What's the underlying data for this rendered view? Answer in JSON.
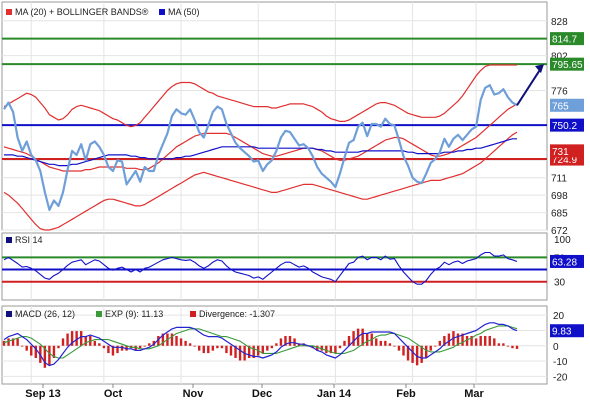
{
  "colors": {
    "price": "#6f9fd8",
    "ma20_band": "#e03030",
    "ma50": "#1010c8",
    "green": "#2a8a2a",
    "red": "#d02020",
    "blue": "#1010c8",
    "axis_text": "#222222",
    "grid": "#e4e4e4",
    "macd_blue": "#2424d0",
    "macd_green": "#3a9a3a",
    "hist": "#d02020",
    "arrow": "#10107a"
  },
  "chart_data": [
    {
      "type": "line",
      "name": "price-panel",
      "legend": [
        "MA (20) + BOLLINGER BANDS®",
        "MA (50)"
      ],
      "y_ticks": [
        828,
        802,
        776,
        750,
        724,
        711,
        698,
        685,
        672
      ],
      "ylim": [
        672,
        842
      ],
      "x_labels": [
        "Sep 13",
        "Oct",
        "Nov",
        "Dec",
        "Jan 14",
        "Feb",
        "Mar"
      ],
      "hlines": [
        {
          "value": 814.7,
          "label": "814.7",
          "color": "green"
        },
        {
          "value": 795.65,
          "label": "795.65",
          "color": "green"
        },
        {
          "value": 750.2,
          "label": "750.2",
          "color": "blue"
        },
        {
          "value": 724.9,
          "label": "724.9",
          "color": "red"
        }
      ],
      "value_tags": [
        {
          "value": 765,
          "label": "765",
          "color": "price"
        },
        {
          "value": 731,
          "label": "731",
          "color": "red"
        }
      ],
      "arrow": {
        "from": 765,
        "to": 795.65
      },
      "price": [
        762,
        767,
        760,
        741,
        731,
        738,
        728,
        724,
        716,
        700,
        687,
        694,
        690,
        700,
        717,
        731,
        728,
        736,
        724,
        736,
        738,
        734,
        728,
        719,
        716,
        724,
        723,
        706,
        711,
        716,
        708,
        719,
        716,
        716,
        728,
        736,
        744,
        757,
        762,
        759,
        758,
        762,
        754,
        745,
        741,
        750,
        760,
        764,
        762,
        751,
        744,
        737,
        733,
        730,
        727,
        723,
        724,
        716,
        721,
        724,
        731,
        741,
        746,
        745,
        740,
        735,
        736,
        733,
        727,
        719,
        714,
        711,
        708,
        704,
        714,
        726,
        737,
        739,
        749,
        752,
        742,
        751,
        751,
        749,
        755,
        751,
        750,
        739,
        727,
        720,
        711,
        708,
        707,
        714,
        722,
        725,
        730,
        740,
        734,
        740,
        743,
        739,
        743,
        747,
        749,
        769,
        778,
        780,
        773,
        774,
        777,
        771,
        767,
        765
      ],
      "ma20": [
        734,
        733,
        732,
        731,
        730,
        729,
        727,
        725,
        723,
        721,
        719,
        718,
        717,
        716,
        716,
        716,
        716,
        716,
        717,
        717,
        718,
        719,
        719,
        719,
        719,
        719,
        719,
        718,
        718,
        718,
        717,
        717,
        718,
        720,
        722,
        725,
        728,
        731,
        734,
        736,
        738,
        740,
        742,
        743,
        744,
        744,
        744,
        744,
        744,
        744,
        743,
        741,
        739,
        737,
        735,
        733,
        731,
        729,
        728,
        727,
        727,
        728,
        729,
        730,
        731,
        732,
        733,
        733,
        733,
        732,
        731,
        729,
        727,
        725,
        724,
        724,
        725,
        726,
        727,
        729,
        731,
        733,
        735,
        737,
        739,
        740,
        741,
        741,
        740,
        738,
        736,
        734,
        732,
        730,
        728,
        727,
        727,
        728,
        729,
        731,
        733,
        735,
        737,
        739,
        741,
        744,
        747,
        750,
        753,
        756,
        759,
        762,
        764,
        766
      ],
      "bb_upper": [
        764,
        766,
        768,
        770,
        772,
        774,
        773,
        771,
        767,
        763,
        758,
        756,
        754,
        755,
        758,
        762,
        764,
        765,
        764,
        763,
        762,
        761,
        759,
        757,
        755,
        754,
        752,
        750,
        749,
        750,
        752,
        756,
        760,
        764,
        768,
        772,
        776,
        779,
        781,
        782,
        782,
        782,
        781,
        779,
        777,
        775,
        774,
        772,
        771,
        770,
        769,
        768,
        767,
        766,
        765,
        764,
        764,
        764,
        764,
        763,
        763,
        764,
        765,
        766,
        766,
        766,
        766,
        765,
        764,
        762,
        760,
        757,
        755,
        754,
        753,
        753,
        754,
        756,
        758,
        760,
        762,
        764,
        766,
        767,
        767,
        766,
        765,
        763,
        761,
        759,
        758,
        757,
        756,
        756,
        756,
        756,
        757,
        759,
        762,
        765,
        768,
        772,
        777,
        782,
        787,
        791,
        794,
        795,
        795,
        795,
        795,
        795,
        795,
        795
      ],
      "bb_lower": [
        700,
        698,
        695,
        692,
        688,
        684,
        680,
        676,
        673,
        672,
        672,
        673,
        674,
        676,
        678,
        680,
        682,
        684,
        686,
        688,
        690,
        692,
        694,
        695,
        695,
        694,
        693,
        692,
        691,
        690,
        690,
        691,
        693,
        695,
        697,
        699,
        701,
        703,
        705,
        707,
        709,
        711,
        713,
        714,
        715,
        714,
        713,
        712,
        711,
        710,
        709,
        708,
        707,
        706,
        705,
        704,
        703,
        702,
        701,
        700,
        700,
        701,
        702,
        703,
        704,
        705,
        706,
        706,
        706,
        705,
        704,
        703,
        702,
        701,
        700,
        699,
        698,
        697,
        696,
        695,
        695,
        696,
        697,
        698,
        699,
        700,
        701,
        702,
        703,
        704,
        705,
        706,
        707,
        708,
        709,
        709,
        709,
        710,
        711,
        712,
        713,
        714,
        716,
        718,
        720,
        722,
        725,
        728,
        731,
        734,
        737,
        740,
        743,
        745
      ],
      "ma50": [
        728,
        728,
        728,
        727,
        727,
        726,
        725,
        724,
        723,
        722,
        721,
        721,
        720,
        720,
        720,
        721,
        721,
        722,
        723,
        724,
        725,
        726,
        727,
        728,
        728,
        728,
        728,
        728,
        727,
        727,
        726,
        726,
        725,
        725,
        725,
        725,
        725,
        725,
        726,
        726,
        727,
        727,
        728,
        729,
        730,
        731,
        732,
        733,
        734,
        734,
        734,
        734,
        734,
        734,
        734,
        734,
        733,
        733,
        733,
        733,
        733,
        733,
        733,
        733,
        733,
        733,
        733,
        733,
        733,
        732,
        732,
        731,
        731,
        730,
        730,
        730,
        730,
        730,
        730,
        731,
        731,
        731,
        731,
        731,
        731,
        731,
        731,
        731,
        731,
        730,
        730,
        729,
        729,
        729,
        729,
        729,
        729,
        730,
        730,
        730,
        731,
        731,
        732,
        732,
        733,
        733,
        734,
        735,
        736,
        737,
        738,
        739,
        740,
        740
      ]
    },
    {
      "type": "line",
      "name": "rsi-panel",
      "legend": [
        "RSI 14"
      ],
      "y_ticks": [
        100,
        70,
        30
      ],
      "ylim": [
        0,
        110
      ],
      "hlines": [
        {
          "value": 70,
          "label": "",
          "color": "green"
        },
        {
          "value": 50,
          "label": "",
          "color": "blue"
        },
        {
          "value": 30,
          "label": "",
          "color": "red"
        }
      ],
      "value_tags": [
        {
          "value": 63.28,
          "label": "63.28",
          "color": "blue"
        }
      ],
      "rsi": [
        66,
        70,
        65,
        60,
        54,
        55,
        52,
        48,
        42,
        36,
        34,
        40,
        44,
        50,
        57,
        62,
        64,
        66,
        58,
        62,
        66,
        64,
        58,
        52,
        49,
        52,
        54,
        50,
        46,
        50,
        46,
        52,
        54,
        58,
        62,
        66,
        68,
        70,
        68,
        66,
        65,
        66,
        62,
        56,
        52,
        56,
        62,
        66,
        64,
        56,
        50,
        46,
        44,
        42,
        40,
        36,
        38,
        34,
        40,
        46,
        52,
        58,
        62,
        62,
        58,
        54,
        56,
        52,
        46,
        42,
        38,
        36,
        34,
        30,
        40,
        50,
        60,
        62,
        70,
        72,
        66,
        70,
        70,
        66,
        72,
        67,
        68,
        56,
        46,
        38,
        30,
        26,
        26,
        32,
        42,
        50,
        54,
        62,
        58,
        62,
        64,
        60,
        64,
        66,
        68,
        74,
        78,
        78,
        72,
        72,
        74,
        68,
        66,
        63.28
      ]
    },
    {
      "type": "bar",
      "name": "macd-panel",
      "legend": [
        "MACD (26, 12)",
        "EXP (9): 11.13",
        "Divergence: -1.307"
      ],
      "y_ticks": [
        20,
        10,
        0,
        -10,
        -20
      ],
      "ylim": [
        -25,
        26
      ],
      "value_tags": [
        {
          "value": 9.83,
          "label": "9.83",
          "color": "blue"
        }
      ],
      "macd": [
        4,
        6,
        7,
        8,
        6,
        4,
        1,
        -2,
        -6,
        -11,
        -13,
        -12,
        -9,
        -5,
        -1,
        2,
        4,
        6,
        6,
        7,
        6,
        5,
        3,
        1,
        -1,
        -1,
        -1,
        -2,
        -2,
        -3,
        -3,
        -2,
        -1,
        1,
        4,
        7,
        9,
        11,
        12,
        12,
        12,
        12,
        11,
        9,
        7,
        6,
        6,
        6,
        5,
        3,
        1,
        -1,
        -3,
        -5,
        -6,
        -7,
        -7,
        -8,
        -7,
        -6,
        -4,
        -1,
        1,
        2,
        2,
        1,
        1,
        0,
        -1,
        -3,
        -4,
        -6,
        -7,
        -8,
        -6,
        -3,
        0,
        3,
        6,
        8,
        8,
        9,
        9,
        9,
        9,
        9,
        8,
        5,
        2,
        -1,
        -4,
        -7,
        -8,
        -8,
        -6,
        -4,
        -2,
        1,
        3,
        5,
        6,
        7,
        8,
        9,
        10,
        12,
        14,
        15,
        15,
        14,
        14,
        13,
        11,
        9.83
      ],
      "signal": [
        2,
        3,
        4,
        5,
        6,
        6,
        5,
        3,
        1,
        -2,
        -5,
        -7,
        -8,
        -8,
        -6,
        -4,
        -2,
        0,
        2,
        3,
        4,
        4,
        4,
        4,
        3,
        2,
        1,
        0,
        -1,
        -1,
        -2,
        -2,
        -2,
        -1,
        0,
        2,
        4,
        6,
        8,
        9,
        10,
        11,
        11,
        11,
        10,
        9,
        8,
        7,
        6,
        6,
        5,
        4,
        3,
        1,
        -1,
        -2,
        -3,
        -5,
        -5,
        -5,
        -5,
        -4,
        -3,
        -2,
        -1,
        0,
        0,
        0,
        0,
        -1,
        -2,
        -3,
        -4,
        -5,
        -5,
        -5,
        -4,
        -3,
        -1,
        1,
        3,
        4,
        6,
        7,
        7,
        8,
        8,
        7,
        6,
        5,
        3,
        1,
        -1,
        -3,
        -4,
        -4,
        -4,
        -3,
        -2,
        -1,
        1,
        2,
        4,
        5,
        7,
        8,
        10,
        11,
        12,
        13,
        13,
        13,
        12,
        11.13
      ]
    },
    {
      "type": "axis",
      "name": "time-axis",
      "x_labels": [
        "Sep 13",
        "Oct",
        "Nov",
        "Dec",
        "Jan 14",
        "Feb",
        "Mar"
      ]
    }
  ]
}
